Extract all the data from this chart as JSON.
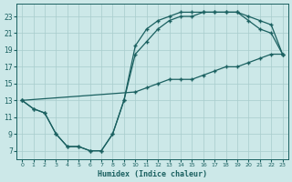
{
  "xlabel": "Humidex (Indice chaleur)",
  "bg_color": "#cce8e8",
  "grid_color": "#a8cccc",
  "line_color": "#1a6060",
  "xlim": [
    -0.5,
    23.5
  ],
  "ylim": [
    6.0,
    24.5
  ],
  "xticks": [
    0,
    1,
    2,
    3,
    4,
    5,
    6,
    7,
    8,
    9,
    10,
    11,
    12,
    13,
    14,
    15,
    16,
    17,
    18,
    19,
    20,
    21,
    22,
    23
  ],
  "yticks": [
    7,
    9,
    11,
    13,
    15,
    17,
    19,
    21,
    23
  ],
  "line_diag_x": [
    0,
    10,
    11,
    12,
    13,
    14,
    15,
    16,
    17,
    18,
    19,
    20,
    21,
    22,
    23
  ],
  "line_diag_y": [
    13,
    14,
    14.5,
    15,
    15.5,
    15.5,
    15.5,
    16,
    16.5,
    17,
    17,
    17.5,
    18,
    18.5,
    18.5
  ],
  "line_upper_x": [
    0,
    1,
    2,
    3,
    4,
    5,
    6,
    7,
    8,
    9,
    10,
    11,
    12,
    13,
    14,
    15,
    16,
    17,
    18,
    19,
    20,
    21,
    22,
    23
  ],
  "line_upper_y": [
    13,
    12,
    11.5,
    9,
    7.5,
    7.5,
    7,
    7,
    9,
    13,
    19.5,
    21.5,
    22.5,
    23,
    23.5,
    23.5,
    23.5,
    23.5,
    23.5,
    23.5,
    23,
    22.5,
    22,
    18.5
  ],
  "line_mid_x": [
    0,
    1,
    2,
    3,
    4,
    5,
    6,
    7,
    8,
    9,
    10,
    11,
    12,
    13,
    14,
    15,
    16,
    17,
    18,
    19,
    20,
    21,
    22,
    23
  ],
  "line_mid_y": [
    13,
    12,
    11.5,
    9,
    7.5,
    7.5,
    7,
    7,
    9,
    13,
    18.5,
    20,
    21.5,
    22.5,
    23,
    23,
    23.5,
    23.5,
    23.5,
    23.5,
    22.5,
    21.5,
    21,
    18.5
  ]
}
